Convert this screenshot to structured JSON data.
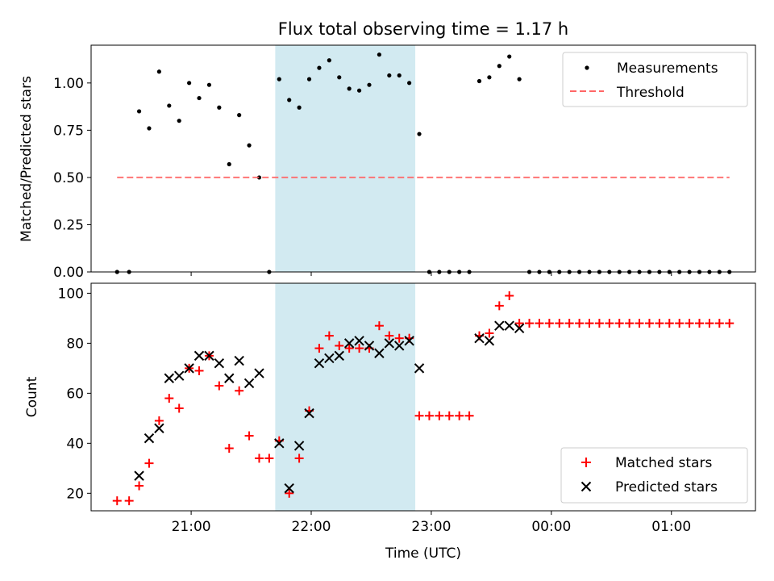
{
  "chart_data": [
    {
      "type": "scatter",
      "title": "Flux total observing time = 1.17 h",
      "ylabel": "Matched/Predicted stars",
      "xlabel": "",
      "ylim": [
        0,
        1.2
      ],
      "yticks": [
        "0.00",
        "0.25",
        "0.50",
        "0.75",
        "1.00"
      ],
      "ytick_values": [
        0,
        0.25,
        0.5,
        0.75,
        1.0
      ],
      "xticks": [
        "21:00",
        "22:00",
        "23:00",
        "00:00",
        "01:00"
      ],
      "xtick_values": [
        "21:00",
        "22:00",
        "23:00",
        "00:00",
        "01:00"
      ],
      "shaded_span": {
        "start": "21:42",
        "end": "22:52",
        "color": "#add8e6"
      },
      "legend_position": "top-right",
      "series": [
        {
          "name": "Measurements",
          "marker": "dot",
          "color": "#000000",
          "x": [
            "20:23",
            "20:29",
            "20:34",
            "20:39",
            "20:44",
            "20:49",
            "20:54",
            "20:59",
            "21:04",
            "21:09",
            "21:14",
            "21:19",
            "21:24",
            "21:29",
            "21:34",
            "21:39",
            "21:44",
            "21:49",
            "21:54",
            "21:59",
            "22:04",
            "22:09",
            "22:14",
            "22:19",
            "22:24",
            "22:29",
            "22:34",
            "22:39",
            "22:44",
            "22:49",
            "22:54",
            "22:59",
            "23:04",
            "23:09",
            "23:14",
            "23:19",
            "23:24",
            "23:29",
            "23:34",
            "23:39",
            "23:44",
            "23:49",
            "23:54",
            "23:59",
            "00:04",
            "00:09",
            "00:14",
            "00:19",
            "00:24",
            "00:29",
            "00:34",
            "00:39",
            "00:44",
            "00:49",
            "00:54",
            "00:59",
            "01:04",
            "01:09",
            "01:14",
            "01:19",
            "01:24",
            "01:29"
          ],
          "y": [
            0,
            0,
            0.85,
            0.76,
            1.06,
            0.88,
            0.8,
            1.0,
            0.92,
            0.99,
            0.87,
            0.57,
            0.83,
            0.67,
            0.5,
            0,
            1.02,
            0.91,
            0.87,
            1.02,
            1.08,
            1.12,
            1.03,
            0.97,
            0.96,
            0.99,
            1.15,
            1.04,
            1.04,
            1.0,
            0.73,
            0,
            0,
            0,
            0,
            0,
            1.01,
            1.03,
            1.09,
            1.14,
            1.02,
            0,
            0,
            0,
            0,
            0,
            0,
            0,
            0,
            0,
            0,
            0,
            0,
            0,
            0,
            0,
            0,
            0,
            0,
            0,
            0,
            0
          ]
        },
        {
          "name": "Threshold",
          "line_style": "dashed",
          "color": "#ff6666",
          "x": [
            "20:23",
            "01:29"
          ],
          "y": [
            0.5,
            0.5
          ]
        }
      ]
    },
    {
      "type": "scatter",
      "title": "",
      "ylabel": "Count",
      "xlabel": "Time (UTC)",
      "ylim": [
        13,
        104
      ],
      "yticks": [
        "20",
        "40",
        "60",
        "80",
        "100"
      ],
      "ytick_values": [
        20,
        40,
        60,
        80,
        100
      ],
      "xticks": [
        "21:00",
        "22:00",
        "23:00",
        "00:00",
        "01:00"
      ],
      "xtick_values": [
        "21:00",
        "22:00",
        "23:00",
        "00:00",
        "01:00"
      ],
      "shaded_span": {
        "start": "21:42",
        "end": "22:52",
        "color": "#add8e6"
      },
      "legend_position": "bottom-right",
      "series": [
        {
          "name": "Matched stars",
          "marker": "plus",
          "color": "#ff0000",
          "x": [
            "20:23",
            "20:29",
            "20:34",
            "20:39",
            "20:44",
            "20:49",
            "20:54",
            "20:59",
            "21:04",
            "21:09",
            "21:14",
            "21:19",
            "21:24",
            "21:29",
            "21:34",
            "21:39",
            "21:44",
            "21:49",
            "21:54",
            "21:59",
            "22:04",
            "22:09",
            "22:14",
            "22:19",
            "22:24",
            "22:29",
            "22:34",
            "22:39",
            "22:44",
            "22:49",
            "22:54",
            "22:59",
            "23:04",
            "23:09",
            "23:14",
            "23:19",
            "23:24",
            "23:29",
            "23:34",
            "23:39",
            "23:44",
            "23:49",
            "23:54",
            "23:59",
            "00:04",
            "00:09",
            "00:14",
            "00:19",
            "00:24",
            "00:29",
            "00:34",
            "00:39",
            "00:44",
            "00:49",
            "00:54",
            "00:59",
            "01:04",
            "01:09",
            "01:14",
            "01:19",
            "01:24",
            "01:29"
          ],
          "y": [
            17,
            17,
            23,
            32,
            49,
            58,
            54,
            70,
            69,
            75,
            63,
            38,
            61,
            43,
            34,
            34,
            41,
            20,
            34,
            53,
            78,
            83,
            79,
            78,
            78,
            78,
            87,
            83,
            82,
            82,
            51,
            51,
            51,
            51,
            51,
            51,
            83,
            84,
            95,
            99,
            88,
            88,
            88,
            88,
            88,
            88,
            88,
            88,
            88,
            88,
            88,
            88,
            88,
            88,
            88,
            88,
            88,
            88,
            88,
            88,
            88,
            88
          ]
        },
        {
          "name": "Predicted stars",
          "marker": "x",
          "color": "#000000",
          "x": [
            "20:34",
            "20:39",
            "20:44",
            "20:49",
            "20:54",
            "20:59",
            "21:04",
            "21:09",
            "21:14",
            "21:19",
            "21:24",
            "21:29",
            "21:34",
            "21:44",
            "21:49",
            "21:54",
            "21:59",
            "22:04",
            "22:09",
            "22:14",
            "22:19",
            "22:24",
            "22:29",
            "22:34",
            "22:39",
            "22:44",
            "22:49",
            "22:54",
            "23:24",
            "23:29",
            "23:34",
            "23:39",
            "23:44"
          ],
          "y": [
            27,
            42,
            46,
            66,
            67,
            70,
            75,
            75,
            72,
            66,
            73,
            64,
            68,
            40,
            22,
            39,
            52,
            72,
            74,
            75,
            80,
            81,
            79,
            76,
            80,
            79,
            81,
            70,
            82,
            81,
            87,
            87,
            86
          ]
        }
      ]
    }
  ]
}
